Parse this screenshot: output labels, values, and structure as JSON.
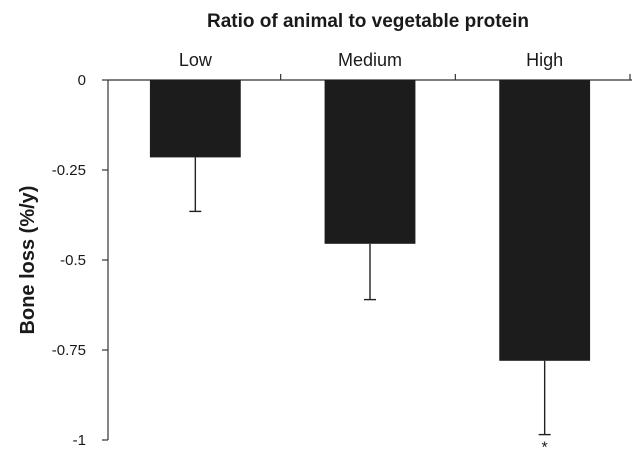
{
  "chart_data": {
    "type": "bar",
    "title": "Ratio of animal to vegetable protein",
    "ylabel": "Bone loss (%/y)",
    "xlabel": "",
    "categories": [
      "Low",
      "Medium",
      "High"
    ],
    "values": [
      -0.215,
      -0.455,
      -0.78
    ],
    "error_low": [
      -0.365,
      -0.61,
      -0.985
    ],
    "ylim": [
      -1,
      0
    ],
    "yticks": [
      0,
      -0.25,
      -0.5,
      -0.75,
      -1
    ],
    "ytick_labels": [
      "0",
      "-0.25",
      "-0.5",
      "-0.75",
      "-1"
    ],
    "category_axis_position": "top",
    "bar_color": "#1c1c1c",
    "significance_marker": {
      "category": "High",
      "text": "*"
    },
    "grid": false,
    "legend": "none"
  }
}
